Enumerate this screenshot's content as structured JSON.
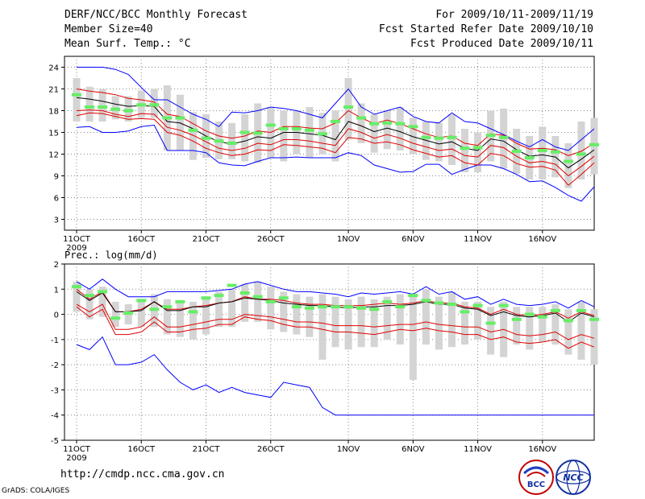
{
  "header": {
    "title": "DERF/NCC/BCC Monthly Forecast",
    "member_size": "Member Size=40",
    "variable": "Mean Surf. Temp.: °C",
    "period": "For 2009/10/11-2009/11/19",
    "started": "Fcst Started Refer Date 2009/10/10",
    "produced": "Fcst Produced Date 2009/10/11"
  },
  "footer": {
    "url": "http://cmdp.ncc.cma.gov.cn",
    "grads": "GrADS: COLA/IGES",
    "logo_left": "BCC",
    "logo_right": "NCC"
  },
  "colors": {
    "envelope": "#0000ff",
    "spread": "#e00000",
    "mean": "#000000",
    "box": "#d4d4d4",
    "marker": "#66ee66"
  },
  "chart_data": [
    {
      "type": "line",
      "title": "Mean Surf. Temp.: °C",
      "days": 40,
      "x_ticks": [
        "11OCT",
        "16OCT",
        "21OCT",
        "26OCT",
        "1NOV",
        "6NOV",
        "11NOV",
        "16NOV"
      ],
      "x_tick_days": [
        0,
        5,
        10,
        15,
        21,
        26,
        31,
        36
      ],
      "year_label": "2009",
      "yticks": [
        3,
        6,
        9,
        12,
        15,
        18,
        21,
        24
      ],
      "ylim": [
        1.5,
        25.5
      ],
      "series": [
        {
          "name": "max",
          "role": "upper",
          "values": [
            24,
            24,
            24,
            23.7,
            23,
            21.2,
            19.5,
            19.5,
            18.5,
            17.5,
            16.8,
            15.8,
            17.8,
            17.7,
            18,
            18.5,
            18.3,
            18,
            17.5,
            17,
            19,
            21,
            18.5,
            17.5,
            18,
            18.5,
            17.2,
            16.5,
            16.3,
            17.7,
            16.5,
            16.3,
            15.5,
            14.7,
            13.8,
            13,
            14,
            13,
            12.5,
            14,
            15.5
          ]
        },
        {
          "name": "p75",
          "role": "spread",
          "values": [
            21,
            20.7,
            20.5,
            20.2,
            19.7,
            19.5,
            19.2,
            17.5,
            17.2,
            16.2,
            15.2,
            14.5,
            14.2,
            14.5,
            15.2,
            15,
            15.8,
            15.8,
            15.6,
            15.5,
            16.3,
            18,
            17,
            16.2,
            16.7,
            16.2,
            15.5,
            14.8,
            14.3,
            14.5,
            13.5,
            13.2,
            14.8,
            14.6,
            13.5,
            12.7,
            12.8,
            12.6,
            11.8,
            12.4,
            13.5
          ]
        },
        {
          "name": "mean",
          "role": "mean",
          "values": [
            19.8,
            19.6,
            19.3,
            18.9,
            18.6,
            18.7,
            18.6,
            16.5,
            16.3,
            15.5,
            14.5,
            13.7,
            13.4,
            13.8,
            14.4,
            14.2,
            15,
            15,
            14.8,
            14.6,
            14,
            16.5,
            15.9,
            15.1,
            15.6,
            15.1,
            14.4,
            13.9,
            13.4,
            13.7,
            12.8,
            12.5,
            14.1,
            13.8,
            12.6,
            11.7,
            11.9,
            11.6,
            10.1,
            11.3,
            12.6
          ]
        },
        {
          "name": "p25",
          "role": "spread",
          "values": [
            18,
            18.1,
            18,
            17.5,
            17.2,
            17.6,
            17.5,
            15.7,
            15.3,
            14.6,
            13.7,
            12.8,
            12.5,
            12.8,
            13.5,
            13.3,
            14,
            14,
            13.8,
            13.5,
            13.2,
            15.5,
            15,
            14.2,
            14.7,
            14.2,
            13.5,
            13,
            12.5,
            12.7,
            11.8,
            11.6,
            13.2,
            12.9,
            11.7,
            10.8,
            11,
            10.6,
            9,
            10.3,
            11.7
          ]
        },
        {
          "name": "p10",
          "role": "spread",
          "values": [
            17.3,
            17.7,
            17.6,
            17.2,
            16.8,
            16.9,
            16.8,
            15,
            14.6,
            13.8,
            12.8,
            12.2,
            11.8,
            12,
            12.6,
            12.5,
            13.3,
            13.2,
            13,
            12.8,
            12.2,
            14.3,
            14.1,
            13.5,
            13.7,
            13.3,
            12.6,
            12.1,
            11.6,
            11.8,
            10.8,
            10.5,
            12.1,
            11.8,
            10.7,
            10.2,
            10.3,
            9.8,
            7.7,
            9.2,
            10.8
          ]
        },
        {
          "name": "min",
          "role": "lower",
          "values": [
            15.7,
            15.8,
            15,
            15,
            15.2,
            15.8,
            16,
            12.5,
            12.5,
            12.5,
            12.2,
            10.8,
            10.5,
            10.4,
            11,
            11.5,
            11.5,
            11.6,
            11.5,
            11.5,
            11.5,
            12.2,
            11.8,
            10.5,
            10,
            9.5,
            9.6,
            10.6,
            10.6,
            9.2,
            9.9,
            10.5,
            10.5,
            10,
            9.2,
            8.2,
            8.3,
            7.4,
            6.3,
            5.5,
            7.5
          ]
        },
        {
          "name": "box_top",
          "role": "box",
          "values": [
            22.5,
            21.3,
            21,
            20,
            20,
            20.8,
            21,
            21.5,
            20.2,
            17.8,
            17.5,
            16.5,
            16.3,
            17.5,
            19,
            18.5,
            18,
            18,
            18.5,
            17.7,
            18,
            22.5,
            19,
            17.5,
            18,
            18.5,
            17,
            16.5,
            16.3,
            17.5,
            15.5,
            15,
            18,
            18.3,
            15.5,
            14.5,
            15.8,
            14.5,
            13.5,
            16.5,
            17
          ]
        },
        {
          "name": "box_bottom",
          "role": "box",
          "values": [
            16.5,
            16.5,
            16.5,
            16.8,
            16.5,
            17,
            17,
            12.5,
            12.5,
            11.2,
            11.5,
            11.3,
            11.3,
            11,
            10.8,
            11.5,
            11,
            12,
            11.5,
            12,
            11,
            14,
            13.5,
            12.2,
            12.7,
            12.5,
            12,
            11.2,
            11,
            10.5,
            9.5,
            9.5,
            11,
            10,
            9.3,
            8.5,
            8.5,
            8.8,
            7.3,
            8.5,
            9.2
          ]
        },
        {
          "name": "obs_marker",
          "role": "marker",
          "values": [
            20.2,
            18.5,
            18.5,
            18.2,
            18,
            18.8,
            18.8,
            17,
            17,
            15.3,
            14.2,
            13.8,
            13.5,
            15,
            14.9,
            16,
            15.5,
            15.5,
            15.3,
            14.8,
            16.5,
            18.5,
            17,
            16.2,
            16.3,
            16.2,
            15.8,
            14.3,
            14.2,
            14.3,
            12.8,
            12.9,
            14.6,
            14.3,
            12.4,
            11.5,
            12.5,
            12.3,
            11,
            12,
            13.3
          ]
        }
      ]
    },
    {
      "type": "line",
      "title": "Prec.: log(mm/d)",
      "days": 40,
      "x_ticks": [
        "11OCT",
        "16OCT",
        "21OCT",
        "26OCT",
        "1NOV",
        "6NOV",
        "11NOV",
        "16NOV"
      ],
      "x_tick_days": [
        0,
        5,
        10,
        15,
        21,
        26,
        31,
        36
      ],
      "year_label": "2009",
      "yticks": [
        -5,
        -4,
        -3,
        -2,
        -1,
        0,
        1,
        2
      ],
      "ylim": [
        -5,
        2
      ],
      "series": [
        {
          "name": "max",
          "role": "upper",
          "values": [
            1.3,
            1.0,
            1.4,
            1.0,
            0.7,
            0.7,
            0.7,
            0.9,
            0.9,
            0.9,
            0.9,
            0.95,
            1.0,
            1.2,
            1.3,
            1.15,
            1.0,
            0.9,
            0.9,
            0.85,
            0.8,
            0.7,
            0.85,
            0.8,
            0.85,
            0.9,
            0.8,
            1.1,
            0.8,
            0.9,
            0.6,
            0.7,
            0.4,
            0.6,
            0.4,
            0.35,
            0.4,
            0.5,
            0.25,
            0.55,
            0.3
          ]
        },
        {
          "name": "p75",
          "role": "spread",
          "values": [
            1.0,
            0.6,
            0.9,
            0.1,
            0.1,
            0.2,
            0.5,
            0.2,
            0.2,
            0.3,
            0.35,
            0.45,
            0.5,
            0.7,
            0.6,
            0.6,
            0.55,
            0.45,
            0.4,
            0.4,
            0.35,
            0.35,
            0.35,
            0.4,
            0.45,
            0.4,
            0.45,
            0.55,
            0.45,
            0.45,
            0.3,
            0.25,
            0.0,
            0.2,
            0.0,
            -0.05,
            0.0,
            0.1,
            -0.15,
            0.1,
            -0.05
          ]
        },
        {
          "name": "mean",
          "role": "mean",
          "values": [
            0.9,
            0.55,
            0.85,
            0.1,
            0.1,
            0.15,
            0.5,
            0.15,
            0.15,
            0.3,
            0.3,
            0.45,
            0.5,
            0.65,
            0.6,
            0.55,
            0.45,
            0.4,
            0.35,
            0.35,
            0.3,
            0.25,
            0.3,
            0.3,
            0.35,
            0.35,
            0.4,
            0.5,
            0.4,
            0.4,
            0.25,
            0.2,
            -0.05,
            0.1,
            -0.05,
            -0.1,
            -0.05,
            0.05,
            -0.3,
            0.05,
            -0.1
          ]
        },
        {
          "name": "p25",
          "role": "spread",
          "values": [
            0.4,
            0.1,
            0.4,
            -0.6,
            -0.6,
            -0.5,
            -0.1,
            -0.5,
            -0.5,
            -0.4,
            -0.3,
            -0.2,
            -0.2,
            0.0,
            -0.05,
            -0.1,
            -0.2,
            -0.3,
            -0.3,
            -0.35,
            -0.45,
            -0.45,
            -0.45,
            -0.5,
            -0.45,
            -0.4,
            -0.4,
            -0.3,
            -0.4,
            -0.45,
            -0.5,
            -0.5,
            -0.7,
            -0.6,
            -0.8,
            -0.85,
            -0.8,
            -0.7,
            -1.0,
            -0.8,
            -0.95
          ]
        },
        {
          "name": "p10",
          "role": "spread",
          "values": [
            0.3,
            -0.1,
            0.2,
            -0.8,
            -0.8,
            -0.7,
            -0.3,
            -0.7,
            -0.7,
            -0.6,
            -0.55,
            -0.4,
            -0.4,
            -0.1,
            -0.2,
            -0.25,
            -0.4,
            -0.5,
            -0.5,
            -0.6,
            -0.7,
            -0.7,
            -0.75,
            -0.8,
            -0.7,
            -0.6,
            -0.65,
            -0.55,
            -0.65,
            -0.7,
            -0.8,
            -0.8,
            -1.0,
            -0.9,
            -1.1,
            -1.15,
            -1.1,
            -1.0,
            -1.35,
            -1.1,
            -1.3
          ]
        },
        {
          "name": "min",
          "role": "lower",
          "values": [
            -1.2,
            -1.4,
            -0.9,
            -2.0,
            -2.0,
            -1.9,
            -1.6,
            -2.2,
            -2.7,
            -3.0,
            -2.8,
            -3.1,
            -2.9,
            -3.1,
            -3.2,
            -3.3,
            -2.7,
            -2.8,
            -2.9,
            -3.7,
            -4.0,
            -4.0,
            -4.0,
            -4.0,
            -4.0,
            -4.0,
            -4.0,
            -4.0,
            -4.0,
            -4.0,
            -4.0,
            -4.0,
            -4.0,
            -4.0,
            -4.0,
            -4.0,
            -4.0,
            -4.0,
            -4.0,
            -4.0,
            -4.0
          ]
        },
        {
          "name": "box_top",
          "role": "box",
          "values": [
            1.3,
            1.0,
            1.1,
            0.5,
            0.4,
            0.5,
            0.8,
            0.6,
            0.5,
            0.5,
            0.7,
            0.9,
            1.0,
            1.2,
            1.3,
            1.1,
            0.9,
            0.8,
            0.7,
            0.8,
            0.7,
            0.6,
            0.7,
            0.6,
            0.7,
            0.8,
            0.7,
            1.0,
            0.7,
            0.9,
            0.5,
            0.5,
            0.3,
            0.5,
            0.3,
            0.3,
            0.3,
            0.4,
            0.2,
            0.5,
            0.2
          ]
        },
        {
          "name": "box_bottom",
          "role": "box",
          "values": [
            0.1,
            -0.2,
            -0.1,
            -0.5,
            -0.4,
            -0.5,
            -0.5,
            -0.8,
            -0.9,
            -1.0,
            -0.8,
            -0.5,
            -0.5,
            -0.3,
            -0.3,
            -0.6,
            -0.7,
            -0.8,
            -0.9,
            -1.8,
            -1.3,
            -1.4,
            -1.3,
            -1.3,
            -1.0,
            -1.2,
            -2.6,
            -1.2,
            -1.4,
            -1.3,
            -1.2,
            -1.0,
            -1.6,
            -1.7,
            -1.2,
            -1.4,
            -1.1,
            -1.2,
            -1.6,
            -1.8,
            -2.0
          ]
        },
        {
          "name": "obs_marker",
          "role": "marker",
          "values": [
            1.1,
            0.75,
            0.9,
            -0.15,
            0.05,
            0.55,
            0.2,
            0.3,
            0.5,
            0.1,
            0.65,
            0.75,
            1.15,
            0.85,
            0.7,
            0.5,
            0.65,
            0.3,
            0.25,
            0.3,
            0.3,
            0.3,
            0.25,
            0.2,
            0.5,
            0.3,
            0.75,
            0.55,
            0.45,
            0.4,
            0.1,
            0.35,
            -0.35,
            0.35,
            -0.2,
            0.0,
            -0.1,
            0.15,
            -0.25,
            0.15,
            -0.2
          ]
        }
      ]
    }
  ]
}
